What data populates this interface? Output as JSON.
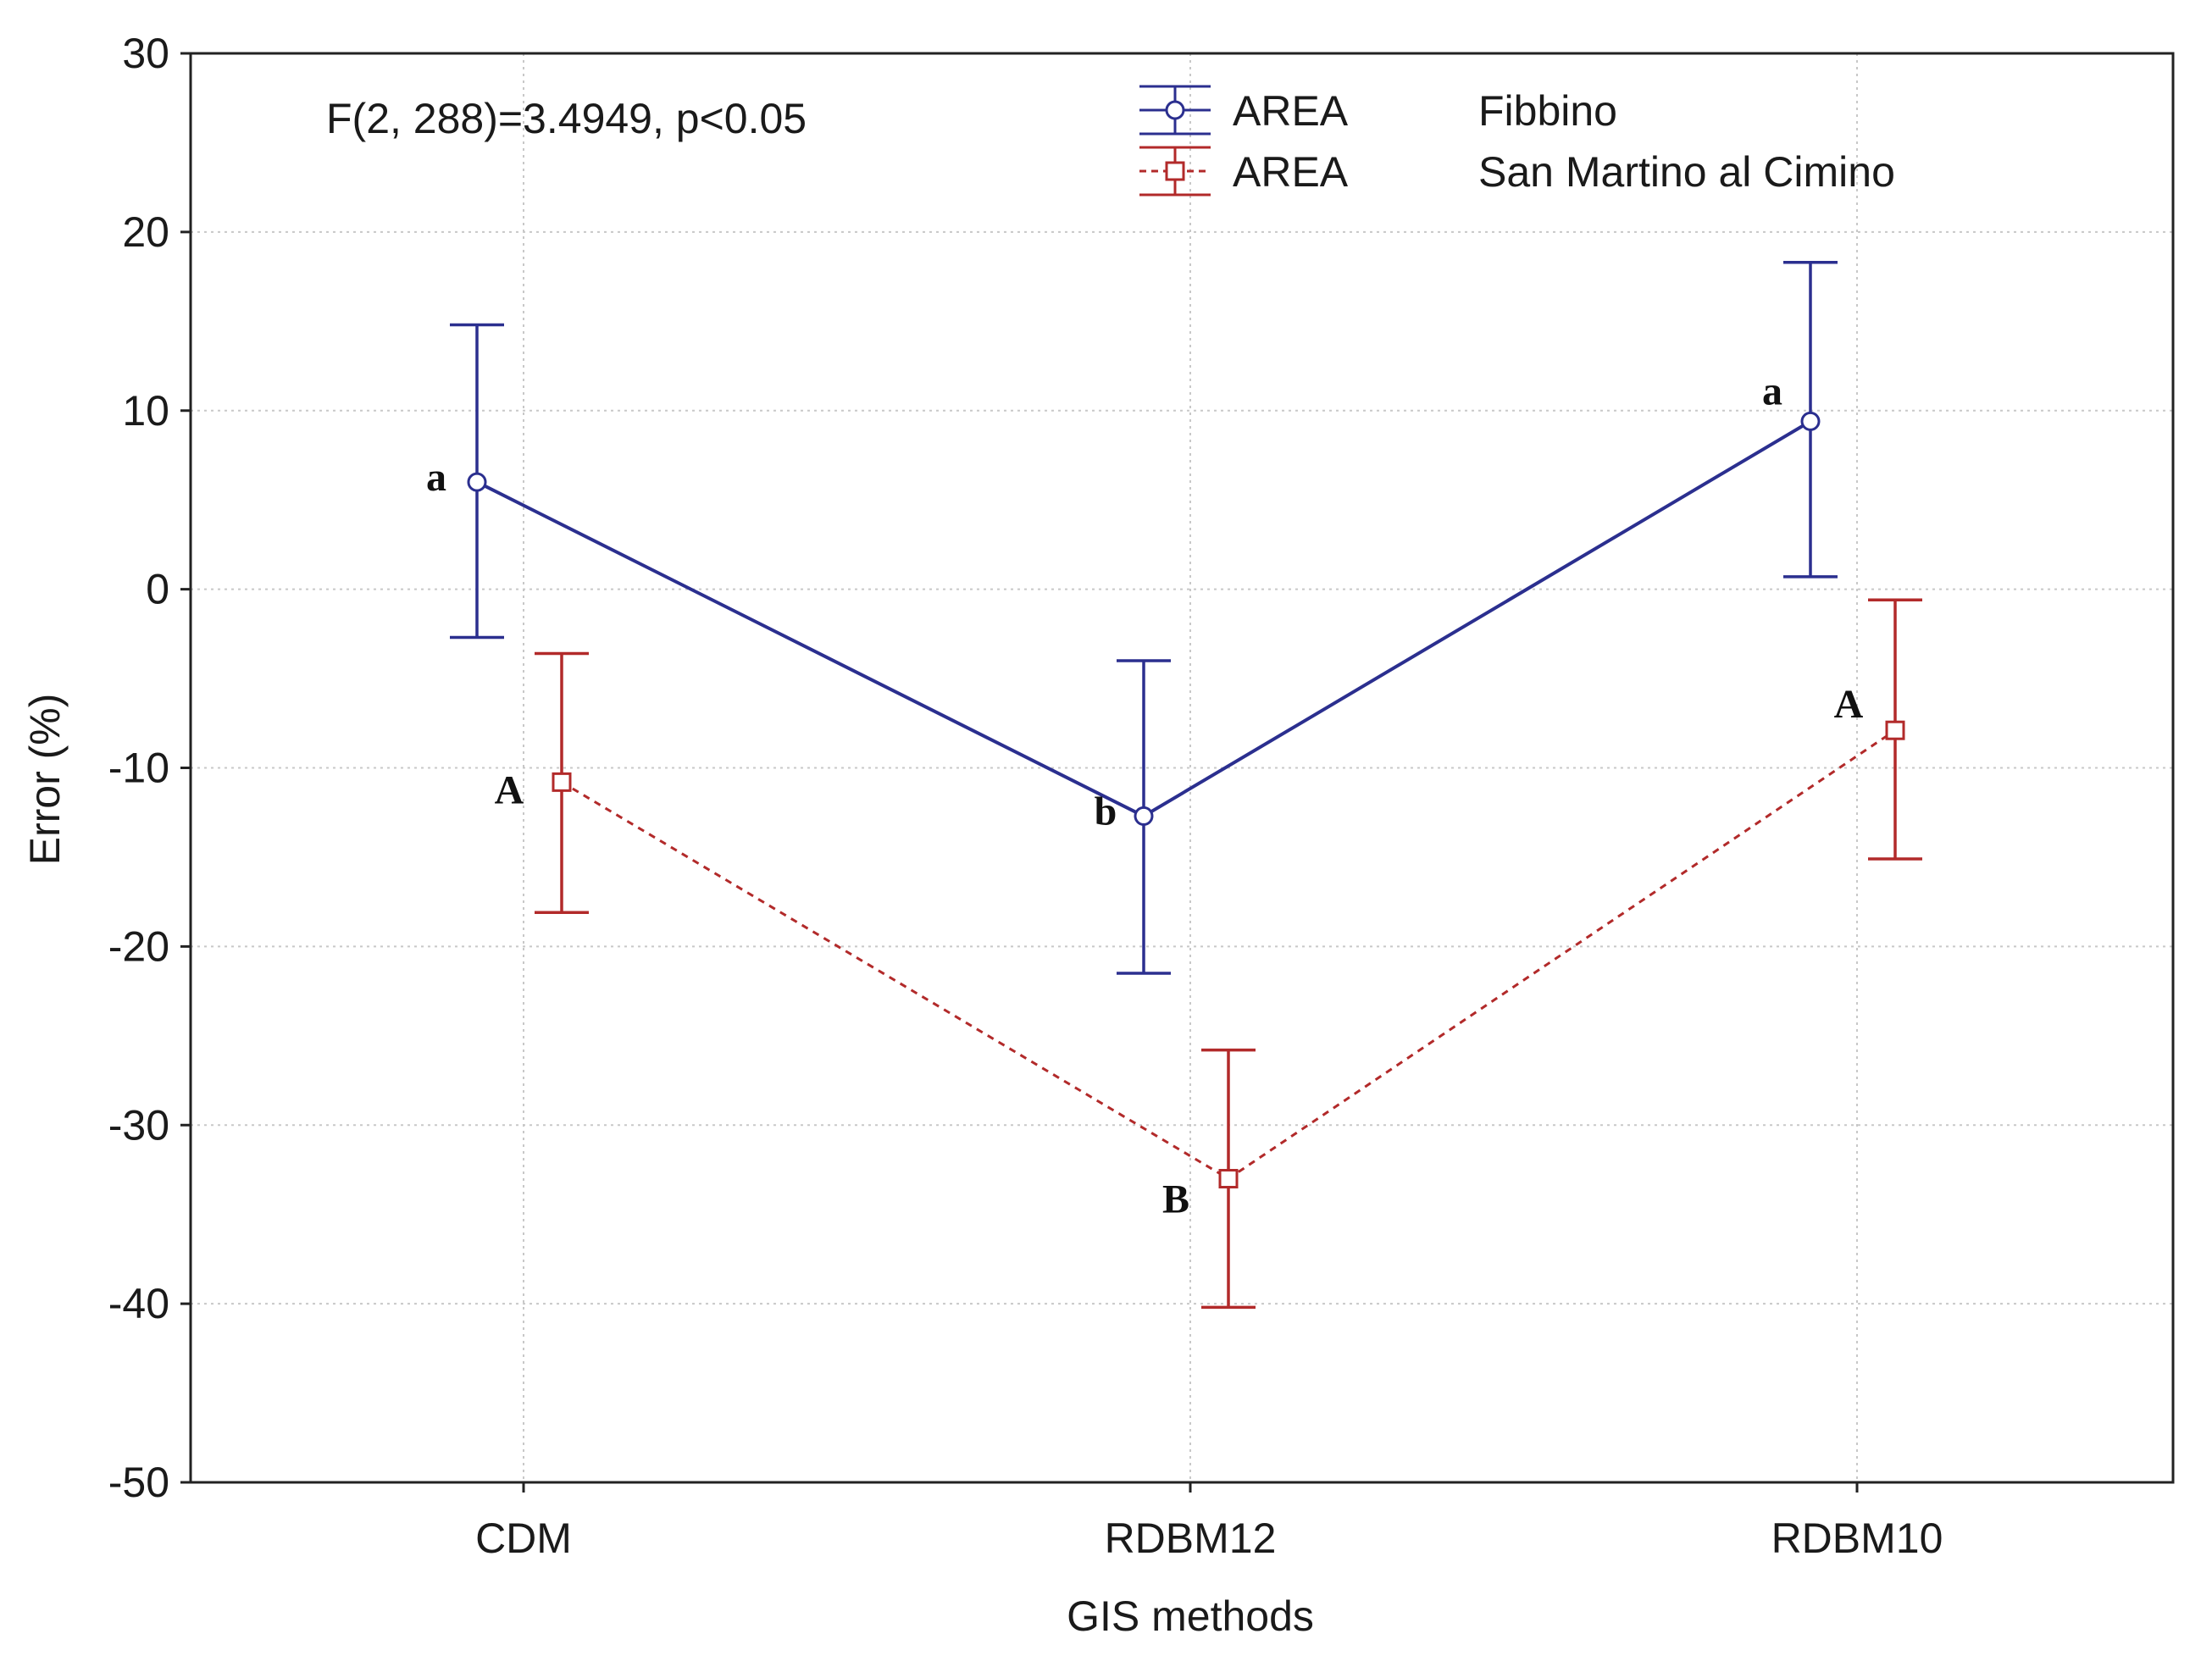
{
  "chart_data": {
    "type": "line",
    "title": "",
    "xlabel": "GIS methods",
    "ylabel": "Error (%)",
    "categories": [
      "CDM",
      "RDBM12",
      "RDBM10"
    ],
    "ylim": [
      -50,
      30
    ],
    "yticks": [
      "30",
      "20",
      "10",
      "0",
      "-10",
      "-20",
      "-30",
      "-40",
      "-50"
    ],
    "grid": true,
    "annotation": "F(2, 288)=3.4949, p<0.05",
    "legend_position": "top-center",
    "series": [
      {
        "name": "Fibbino",
        "legend_factor": "AREA",
        "color": "#2b2f8f",
        "marker": "circle",
        "line_style": "solid",
        "values": [
          6.0,
          -12.7,
          9.4
        ],
        "lower": [
          -2.7,
          -21.5,
          0.7
        ],
        "upper": [
          14.8,
          -4.0,
          18.3
        ],
        "labels": [
          "a",
          "b",
          "a"
        ]
      },
      {
        "name": "San Martino al Cimino",
        "legend_factor": "AREA",
        "color": "#b22a2a",
        "marker": "square",
        "line_style": "dashed",
        "values": [
          -10.8,
          -33.0,
          -7.9
        ],
        "lower": [
          -18.1,
          -40.2,
          -15.1
        ],
        "upper": [
          -3.6,
          -25.8,
          -0.6
        ],
        "labels": [
          "A",
          "B",
          "A"
        ]
      }
    ]
  }
}
